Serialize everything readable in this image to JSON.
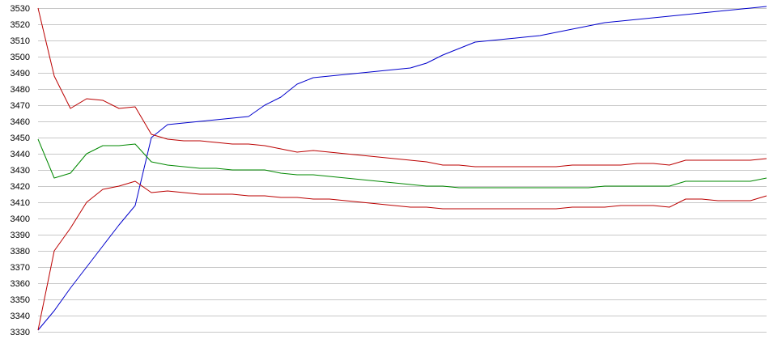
{
  "chart_data": {
    "type": "line",
    "title": "",
    "xlabel": "",
    "ylabel": "",
    "ylim": [
      3330,
      3530
    ],
    "yticks": [
      3530,
      3520,
      3510,
      3500,
      3490,
      3480,
      3470,
      3460,
      3450,
      3440,
      3430,
      3420,
      3410,
      3400,
      3390,
      3380,
      3370,
      3360,
      3350,
      3340,
      3330
    ],
    "grid": "horizontal",
    "legend": "none",
    "x": [
      0,
      5,
      10,
      15,
      20,
      25,
      30,
      35,
      40,
      45,
      50,
      55,
      60,
      65,
      70,
      75,
      80,
      85,
      90,
      95,
      100,
      105,
      110,
      115,
      120,
      125,
      130,
      135,
      140,
      145,
      150,
      155,
      160,
      165,
      170,
      175,
      180,
      185,
      190,
      195,
      200,
      205,
      210,
      215,
      220,
      225
    ],
    "series": [
      {
        "color": "#0000cc",
        "values": [
          3331,
          3343,
          3357,
          3370,
          3383,
          3396,
          3408,
          3450,
          3458,
          3459,
          3460,
          3461,
          3462,
          3463,
          3470,
          3475,
          3483,
          3487,
          3488,
          3489,
          3490,
          3491,
          3492,
          3493,
          3496,
          3501,
          3505,
          3509,
          3510,
          3511,
          3512,
          3513,
          3515,
          3517,
          3519,
          3521,
          3522,
          3523,
          3524,
          3525,
          3526,
          3527,
          3528,
          3529,
          3530,
          3531
        ]
      },
      {
        "color": "#bb0000",
        "values": [
          3530,
          3488,
          3468,
          3474,
          3473,
          3468,
          3469,
          3452,
          3449,
          3448,
          3448,
          3447,
          3446,
          3446,
          3445,
          3443,
          3441,
          3442,
          3441,
          3440,
          3439,
          3438,
          3437,
          3436,
          3435,
          3433,
          3433,
          3432,
          3432,
          3432,
          3432,
          3432,
          3432,
          3433,
          3433,
          3433,
          3433,
          3434,
          3434,
          3433,
          3436,
          3436,
          3436,
          3436,
          3436,
          3437
        ]
      },
      {
        "color": "#008800",
        "values": [
          3449,
          3425,
          3428,
          3440,
          3445,
          3445,
          3446,
          3435,
          3433,
          3432,
          3431,
          3431,
          3430,
          3430,
          3430,
          3428,
          3427,
          3427,
          3426,
          3425,
          3424,
          3423,
          3422,
          3421,
          3420,
          3420,
          3419,
          3419,
          3419,
          3419,
          3419,
          3419,
          3419,
          3419,
          3419,
          3420,
          3420,
          3420,
          3420,
          3420,
          3423,
          3423,
          3423,
          3423,
          3423,
          3425
        ]
      },
      {
        "color": "#bb0000",
        "values": [
          3331,
          3380,
          3394,
          3410,
          3418,
          3420,
          3423,
          3416,
          3417,
          3416,
          3415,
          3415,
          3415,
          3414,
          3414,
          3413,
          3413,
          3412,
          3412,
          3411,
          3410,
          3409,
          3408,
          3407,
          3407,
          3406,
          3406,
          3406,
          3406,
          3406,
          3406,
          3406,
          3406,
          3407,
          3407,
          3407,
          3408,
          3408,
          3408,
          3407,
          3412,
          3412,
          3411,
          3411,
          3411,
          3414
        ]
      }
    ]
  }
}
